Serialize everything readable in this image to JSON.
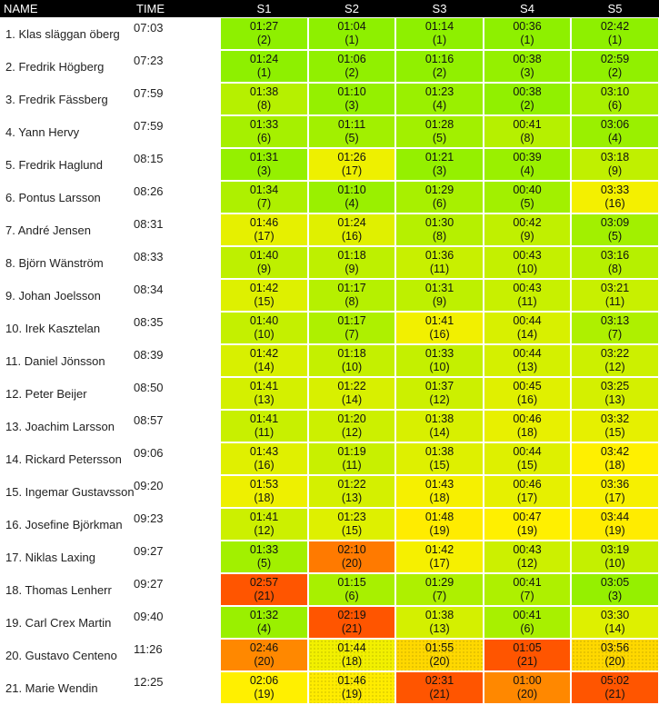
{
  "header": {
    "name": "NAME",
    "time": "TIME",
    "stages": [
      "S1",
      "S2",
      "S3",
      "S4",
      "S5"
    ]
  },
  "rows": [
    {
      "name": "1. Klas släggan öberg",
      "time": "07:03",
      "cells": [
        {
          "t": "01:27",
          "r": "(2)",
          "c": "#8ef000"
        },
        {
          "t": "01:04",
          "r": "(1)",
          "c": "#8ef000"
        },
        {
          "t": "01:14",
          "r": "(1)",
          "c": "#8ef000"
        },
        {
          "t": "00:36",
          "r": "(1)",
          "c": "#8ef000"
        },
        {
          "t": "02:42",
          "r": "(1)",
          "c": "#8ef000"
        }
      ]
    },
    {
      "name": "2. Fredrik Högberg",
      "time": "07:23",
      "cells": [
        {
          "t": "01:24",
          "r": "(1)",
          "c": "#8ef000"
        },
        {
          "t": "01:06",
          "r": "(2)",
          "c": "#91f000"
        },
        {
          "t": "01:16",
          "r": "(2)",
          "c": "#91f000"
        },
        {
          "t": "00:38",
          "r": "(3)",
          "c": "#95f000"
        },
        {
          "t": "02:59",
          "r": "(2)",
          "c": "#91f000"
        }
      ]
    },
    {
      "name": "3. Fredrik Fässberg",
      "time": "07:59",
      "cells": [
        {
          "t": "01:38",
          "r": "(8)",
          "c": "#b6f000"
        },
        {
          "t": "01:10",
          "r": "(3)",
          "c": "#95f000"
        },
        {
          "t": "01:23",
          "r": "(4)",
          "c": "#9af000"
        },
        {
          "t": "00:38",
          "r": "(2)",
          "c": "#91f000"
        },
        {
          "t": "03:10",
          "r": "(6)",
          "c": "#a8f000"
        }
      ]
    },
    {
      "name": "4. Yann Hervy",
      "time": "07:59",
      "cells": [
        {
          "t": "01:33",
          "r": "(6)",
          "c": "#a6f000"
        },
        {
          "t": "01:11",
          "r": "(5)",
          "c": "#a2f000"
        },
        {
          "t": "01:28",
          "r": "(5)",
          "c": "#a2f000"
        },
        {
          "t": "00:41",
          "r": "(8)",
          "c": "#b6f000"
        },
        {
          "t": "03:06",
          "r": "(4)",
          "c": "#9af000"
        }
      ]
    },
    {
      "name": "5. Fredrik Haglund",
      "time": "08:15",
      "cells": [
        {
          "t": "01:31",
          "r": "(3)",
          "c": "#95f000"
        },
        {
          "t": "01:26",
          "r": "(17)",
          "c": "#eef000"
        },
        {
          "t": "01:21",
          "r": "(3)",
          "c": "#95f000"
        },
        {
          "t": "00:39",
          "r": "(4)",
          "c": "#9af000"
        },
        {
          "t": "03:18",
          "r": "(9)",
          "c": "#c0f000"
        }
      ]
    },
    {
      "name": "6. Pontus Larsson",
      "time": "08:26",
      "cells": [
        {
          "t": "01:34",
          "r": "(7)",
          "c": "#aef000"
        },
        {
          "t": "01:10",
          "r": "(4)",
          "c": "#9af000"
        },
        {
          "t": "01:29",
          "r": "(6)",
          "c": "#a8f000"
        },
        {
          "t": "00:40",
          "r": "(5)",
          "c": "#a2f000"
        },
        {
          "t": "03:33",
          "r": "(16)",
          "c": "#f4f000"
        }
      ]
    },
    {
      "name": "7. André Jensen",
      "time": "08:31",
      "cells": [
        {
          "t": "01:46",
          "r": "(17)",
          "c": "#e6f000"
        },
        {
          "t": "01:24",
          "r": "(16)",
          "c": "#e0f000"
        },
        {
          "t": "01:30",
          "r": "(8)",
          "c": "#b6f000"
        },
        {
          "t": "00:42",
          "r": "(9)",
          "c": "#c0f000"
        },
        {
          "t": "03:09",
          "r": "(5)",
          "c": "#a2f000"
        }
      ]
    },
    {
      "name": "8. Björn Wänström",
      "time": "08:33",
      "cells": [
        {
          "t": "01:40",
          "r": "(9)",
          "c": "#bef000"
        },
        {
          "t": "01:18",
          "r": "(9)",
          "c": "#bef000"
        },
        {
          "t": "01:36",
          "r": "(11)",
          "c": "#c8f000"
        },
        {
          "t": "00:43",
          "r": "(10)",
          "c": "#c4f000"
        },
        {
          "t": "03:16",
          "r": "(8)",
          "c": "#b6f000"
        }
      ]
    },
    {
      "name": "9. Johan Joelsson",
      "time": "08:34",
      "cells": [
        {
          "t": "01:42",
          "r": "(15)",
          "c": "#def000"
        },
        {
          "t": "01:17",
          "r": "(8)",
          "c": "#b6f000"
        },
        {
          "t": "01:31",
          "r": "(9)",
          "c": "#bef000"
        },
        {
          "t": "00:43",
          "r": "(11)",
          "c": "#c8f000"
        },
        {
          "t": "03:21",
          "r": "(11)",
          "c": "#c8f000"
        }
      ]
    },
    {
      "name": "10. Irek Kasztelan",
      "time": "08:35",
      "cells": [
        {
          "t": "01:40",
          "r": "(10)",
          "c": "#c4f000"
        },
        {
          "t": "01:17",
          "r": "(7)",
          "c": "#aef000"
        },
        {
          "t": "01:41",
          "r": "(16)",
          "c": "#f2f000"
        },
        {
          "t": "00:44",
          "r": "(14)",
          "c": "#d8f000"
        },
        {
          "t": "03:13",
          "r": "(7)",
          "c": "#aef000"
        }
      ]
    },
    {
      "name": "11. Daniel Jönsson",
      "time": "08:39",
      "cells": [
        {
          "t": "01:42",
          "r": "(14)",
          "c": "#d8f000"
        },
        {
          "t": "01:18",
          "r": "(10)",
          "c": "#c4f000"
        },
        {
          "t": "01:33",
          "r": "(10)",
          "c": "#c4f000"
        },
        {
          "t": "00:44",
          "r": "(13)",
          "c": "#d4f000"
        },
        {
          "t": "03:22",
          "r": "(12)",
          "c": "#ccf000"
        }
      ]
    },
    {
      "name": "12. Peter Beijer",
      "time": "08:50",
      "cells": [
        {
          "t": "01:41",
          "r": "(13)",
          "c": "#d4f000"
        },
        {
          "t": "01:22",
          "r": "(14)",
          "c": "#d8f000"
        },
        {
          "t": "01:37",
          "r": "(12)",
          "c": "#ccf000"
        },
        {
          "t": "00:45",
          "r": "(16)",
          "c": "#e0f000"
        },
        {
          "t": "03:25",
          "r": "(13)",
          "c": "#d4f000"
        }
      ]
    },
    {
      "name": "13. Joachim Larsson",
      "time": "08:57",
      "cells": [
        {
          "t": "01:41",
          "r": "(11)",
          "c": "#c8f000"
        },
        {
          "t": "01:20",
          "r": "(12)",
          "c": "#ccf000"
        },
        {
          "t": "01:38",
          "r": "(14)",
          "c": "#d8f000"
        },
        {
          "t": "00:46",
          "r": "(18)",
          "c": "#e8f000"
        },
        {
          "t": "03:32",
          "r": "(15)",
          "c": "#e6f000"
        }
      ]
    },
    {
      "name": "14. Rickard Petersson",
      "time": "09:06",
      "cells": [
        {
          "t": "01:43",
          "r": "(16)",
          "c": "#e0f000"
        },
        {
          "t": "01:19",
          "r": "(11)",
          "c": "#c8f000"
        },
        {
          "t": "01:38",
          "r": "(15)",
          "c": "#def000"
        },
        {
          "t": "00:44",
          "r": "(15)",
          "c": "#def000"
        },
        {
          "t": "03:42",
          "r": "(18)",
          "c": "#fff000"
        }
      ]
    },
    {
      "name": "15. Ingemar Gustavsson",
      "time": "09:20",
      "cells": [
        {
          "t": "01:53",
          "r": "(18)",
          "c": "#eef000"
        },
        {
          "t": "01:22",
          "r": "(13)",
          "c": "#d4f000"
        },
        {
          "t": "01:43",
          "r": "(18)",
          "c": "#f6f000"
        },
        {
          "t": "00:46",
          "r": "(17)",
          "c": "#e6f000"
        },
        {
          "t": "03:36",
          "r": "(17)",
          "c": "#f6f000"
        }
      ]
    },
    {
      "name": "16. Josefine Björkman",
      "time": "09:23",
      "cells": [
        {
          "t": "01:41",
          "r": "(12)",
          "c": "#ccf000"
        },
        {
          "t": "01:23",
          "r": "(15)",
          "c": "#def000"
        },
        {
          "t": "01:48",
          "r": "(19)",
          "c": "#ffec00"
        },
        {
          "t": "00:47",
          "r": "(19)",
          "c": "#fff000"
        },
        {
          "t": "03:44",
          "r": "(19)",
          "c": "#ffec00"
        }
      ]
    },
    {
      "name": "17. Niklas Laxing",
      "time": "09:27",
      "cells": [
        {
          "t": "01:33",
          "r": "(5)",
          "c": "#a2f000"
        },
        {
          "t": "02:10",
          "r": "(20)",
          "c": "#ff7a00"
        },
        {
          "t": "01:42",
          "r": "(17)",
          "c": "#f6f000"
        },
        {
          "t": "00:43",
          "r": "(12)",
          "c": "#ccf000"
        },
        {
          "t": "03:19",
          "r": "(10)",
          "c": "#c4f000"
        }
      ]
    },
    {
      "name": "18. Thomas Lenherr",
      "time": "09:27",
      "cells": [
        {
          "t": "02:57",
          "r": "(21)",
          "c": "#ff5500"
        },
        {
          "t": "01:15",
          "r": "(6)",
          "c": "#a8f000"
        },
        {
          "t": "01:29",
          "r": "(7)",
          "c": "#aef000"
        },
        {
          "t": "00:41",
          "r": "(7)",
          "c": "#aef000"
        },
        {
          "t": "03:05",
          "r": "(3)",
          "c": "#95f000"
        }
      ]
    },
    {
      "name": "19. Carl Crex Martin",
      "time": "09:40",
      "cells": [
        {
          "t": "01:32",
          "r": "(4)",
          "c": "#9af000"
        },
        {
          "t": "02:19",
          "r": "(21)",
          "c": "#ff5500"
        },
        {
          "t": "01:38",
          "r": "(13)",
          "c": "#d4f000"
        },
        {
          "t": "00:41",
          "r": "(6)",
          "c": "#a8f000"
        },
        {
          "t": "03:30",
          "r": "(14)",
          "c": "#def000"
        }
      ]
    },
    {
      "name": "20. Gustavo Centeno",
      "time": "11:26",
      "cells": [
        {
          "t": "02:46",
          "r": "(20)",
          "c": "#ff8800"
        },
        {
          "t": "01:44",
          "r": "(18)",
          "c": "#f2f000"
        },
        {
          "t": "01:55",
          "r": "(20)",
          "c": "#ffd800"
        },
        {
          "t": "01:05",
          "r": "(21)",
          "c": "#ff5500"
        },
        {
          "t": "03:56",
          "r": "(20)",
          "c": "#ffd800"
        }
      ]
    },
    {
      "name": "21. Marie Wendin",
      "time": "12:25",
      "cells": [
        {
          "t": "02:06",
          "r": "(19)",
          "c": "#fff000"
        },
        {
          "t": "01:46",
          "r": "(19)",
          "c": "#ffec00"
        },
        {
          "t": "02:31",
          "r": "(21)",
          "c": "#ff5500"
        },
        {
          "t": "01:00",
          "r": "(20)",
          "c": "#ff8800"
        },
        {
          "t": "05:02",
          "r": "(21)",
          "c": "#ff5500"
        }
      ]
    }
  ]
}
